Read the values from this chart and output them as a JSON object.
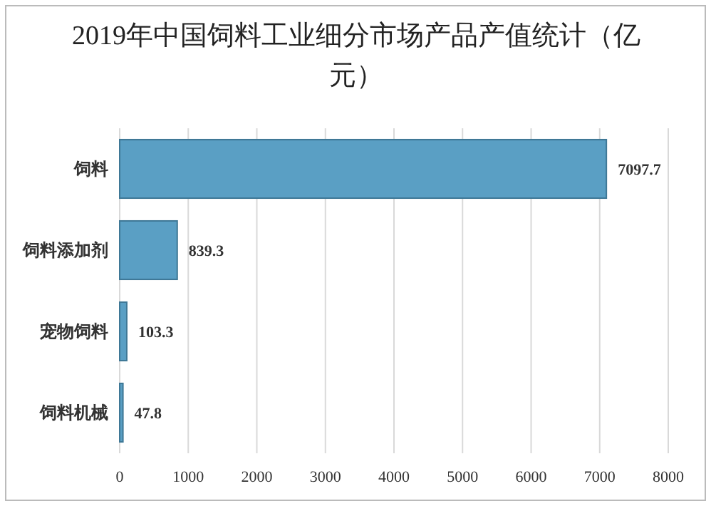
{
  "chart_data": {
    "type": "bar",
    "orientation": "horizontal",
    "title": "2019年中国饲料工业细分市场产品产值统计（亿元）",
    "categories": [
      "饲料",
      "饲料添加剂",
      "宠物饲料",
      "饲料机械"
    ],
    "values": [
      7097.7,
      839.3,
      103.3,
      47.8
    ],
    "color": "#5a9fc4",
    "xlim": [
      0,
      8000
    ],
    "xticks": [
      0,
      1000,
      2000,
      3000,
      4000,
      5000,
      6000,
      7000,
      8000
    ],
    "grid": "x",
    "data_labels": true
  }
}
